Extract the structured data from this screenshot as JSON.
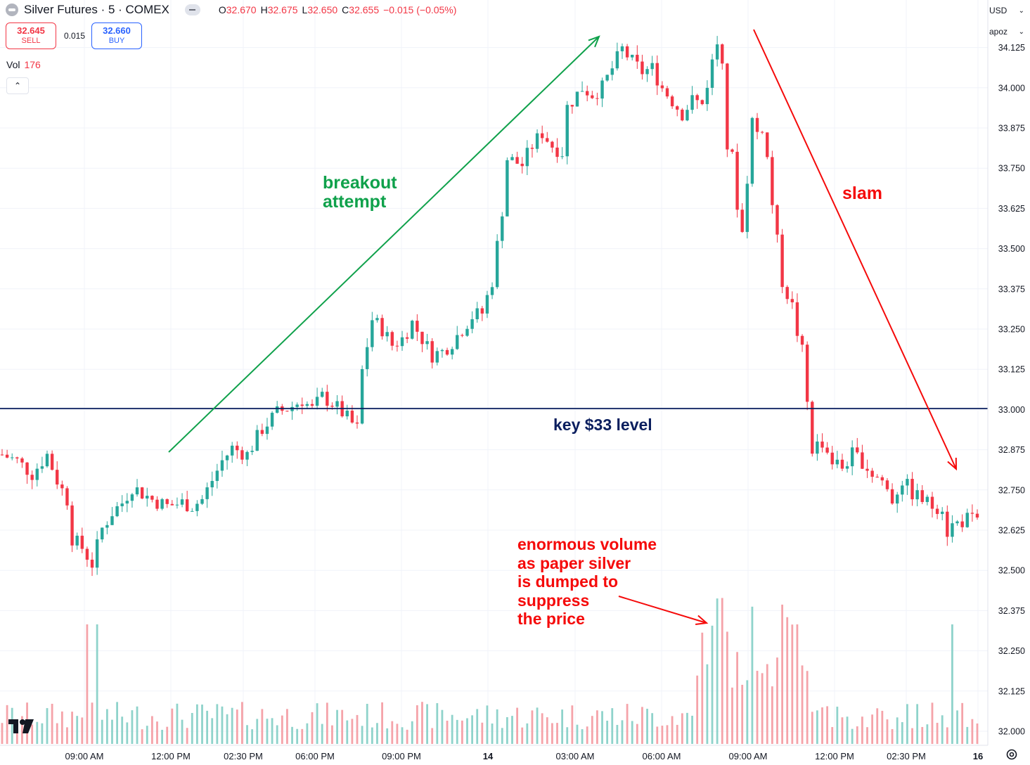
{
  "header": {
    "symbol_title": "Silver Futures · 5 · COMEX",
    "ohlc": {
      "o_label": "O",
      "o_value": "32.670",
      "h_label": "H",
      "h_value": "32.675",
      "l_label": "L",
      "l_value": "32.650",
      "c_label": "C",
      "c_value": "32.655",
      "change": "−0.015 (−0.05%)"
    }
  },
  "trade": {
    "sell_price": "32.645",
    "sell_label": "SELL",
    "spread": "0.015",
    "buy_price": "32.660",
    "buy_label": "BUY"
  },
  "volume_legend": {
    "label": "Vol",
    "value": "176"
  },
  "collapse_label": "⌃",
  "currency": {
    "label": "USD",
    "arrow": "⌄"
  },
  "unit_selector": {
    "label": "apoz",
    "arrow": "⌄"
  },
  "annotations": {
    "breakout": "breakout\nattempt",
    "slam": "slam",
    "key_level": "key $33 level",
    "volume_note": "enormous volume\nas paper silver\nis dumped to\nsuppress\nthe price"
  },
  "colors": {
    "up": "#26a69a",
    "down": "#f23645",
    "vol_up": "#8fd3cb",
    "vol_down": "#f5a3a9",
    "green_annotation": "#0fa14b",
    "red_annotation": "#f50a0a",
    "navy": "#0a1e5e",
    "axis_text": "#131722",
    "grid": "#f0f3fa"
  },
  "icons": {
    "logo": "tradingview-logo",
    "settings": "gear-icon",
    "symbol": "silver-futures-icon",
    "hide": "eye-hide-icon"
  },
  "chart_data": {
    "type": "candlestick",
    "title": "Silver Futures · 5 · COMEX",
    "y_ticks": [
      "34.125",
      "34.000",
      "33.875",
      "33.750",
      "33.625",
      "33.500",
      "33.375",
      "33.250",
      "33.125",
      "33.000",
      "32.875",
      "32.750",
      "32.625",
      "32.500",
      "32.375",
      "32.250",
      "32.125",
      "32.000"
    ],
    "x_ticks": [
      "09:00 AM",
      "12:00 PM",
      "02:30 PM",
      "06:00 PM",
      "09:00 PM",
      "14",
      "03:00 AM",
      "06:00 AM",
      "09:00 AM",
      "12:00 PM",
      "02:30 PM",
      "16"
    ],
    "ylim": [
      31.96,
      34.18
    ],
    "key_level": 33.0,
    "close_path": [
      [
        0,
        32.86
      ],
      [
        3,
        32.84
      ],
      [
        6,
        32.8
      ],
      [
        9,
        32.86
      ],
      [
        11,
        32.78
      ],
      [
        13,
        32.72
      ],
      [
        14,
        32.6
      ],
      [
        16,
        32.57
      ],
      [
        18,
        32.52
      ],
      [
        20,
        32.63
      ],
      [
        22,
        32.68
      ],
      [
        24,
        32.71
      ],
      [
        26,
        32.76
      ],
      [
        28,
        32.74
      ],
      [
        30,
        32.72
      ],
      [
        33,
        32.7
      ],
      [
        36,
        32.71
      ],
      [
        38,
        32.7
      ],
      [
        40,
        32.72
      ],
      [
        42,
        32.78
      ],
      [
        44,
        32.84
      ],
      [
        46,
        32.88
      ],
      [
        49,
        32.86
      ],
      [
        52,
        32.94
      ],
      [
        55,
        32.99
      ],
      [
        58,
        33.01
      ],
      [
        60,
        33.03
      ],
      [
        62,
        33.0
      ],
      [
        64,
        33.04
      ],
      [
        66,
        33.02
      ],
      [
        68,
        32.99
      ],
      [
        71,
        32.94
      ],
      [
        72,
        33.12
      ],
      [
        74,
        33.28
      ],
      [
        76,
        33.25
      ],
      [
        78,
        33.2
      ],
      [
        80,
        33.22
      ],
      [
        82,
        33.27
      ],
      [
        84,
        33.22
      ],
      [
        86,
        33.17
      ],
      [
        88,
        33.18
      ],
      [
        90,
        33.21
      ],
      [
        92,
        33.25
      ],
      [
        94,
        33.29
      ],
      [
        96,
        33.3
      ],
      [
        98,
        33.4
      ],
      [
        100,
        33.62
      ],
      [
        101,
        33.78
      ],
      [
        104,
        33.76
      ],
      [
        106,
        33.82
      ],
      [
        108,
        33.86
      ],
      [
        110,
        33.82
      ],
      [
        112,
        33.8
      ],
      [
        113,
        33.94
      ],
      [
        116,
        34.0
      ],
      [
        118,
        33.98
      ],
      [
        120,
        34.0
      ],
      [
        122,
        34.06
      ],
      [
        124,
        34.12
      ],
      [
        126,
        34.08
      ],
      [
        128,
        34.05
      ],
      [
        130,
        34.06
      ],
      [
        132,
        34.0
      ],
      [
        134,
        33.96
      ],
      [
        136,
        33.92
      ],
      [
        138,
        33.96
      ],
      [
        140,
        33.95
      ],
      [
        142,
        34.08
      ],
      [
        143,
        34.14
      ],
      [
        144,
        34.1
      ],
      [
        145,
        33.82
      ],
      [
        146,
        33.78
      ],
      [
        147,
        33.64
      ],
      [
        148,
        33.55
      ],
      [
        149,
        33.72
      ],
      [
        150,
        33.9
      ],
      [
        151,
        33.86
      ],
      [
        152,
        33.88
      ],
      [
        153,
        33.78
      ],
      [
        154,
        33.64
      ],
      [
        156,
        33.4
      ],
      [
        158,
        33.32
      ],
      [
        159,
        33.24
      ],
      [
        160,
        33.18
      ],
      [
        161,
        33.02
      ],
      [
        162,
        32.88
      ],
      [
        164,
        32.9
      ],
      [
        166,
        32.84
      ],
      [
        168,
        32.82
      ],
      [
        170,
        32.86
      ],
      [
        172,
        32.84
      ],
      [
        174,
        32.8
      ],
      [
        176,
        32.78
      ],
      [
        178,
        32.72
      ],
      [
        180,
        32.78
      ],
      [
        182,
        32.74
      ],
      [
        184,
        32.72
      ],
      [
        186,
        32.7
      ],
      [
        188,
        32.7
      ],
      [
        189,
        32.62
      ],
      [
        190,
        32.64
      ],
      [
        193,
        32.66
      ],
      [
        195,
        32.65
      ]
    ],
    "candle_count": 196,
    "volume_axis_max": 600,
    "volume_note": "volume bars shown below price; spike during the 09:00 AM–12:00 PM selloff on the 14th"
  }
}
